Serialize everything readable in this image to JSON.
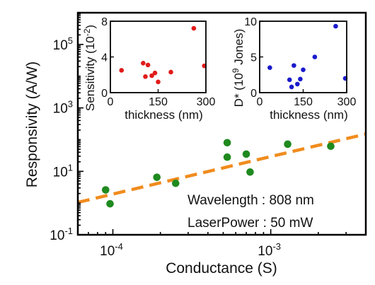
{
  "chart_data": [
    {
      "type": "scatter",
      "title": "",
      "xlabel": "Conductance (S)",
      "ylabel": "Responsivity (A/W)",
      "xscale": "log",
      "yscale": "log",
      "xlim": [
        6e-05,
        0.004
      ],
      "ylim": [
        0.1,
        1000000
      ],
      "xticks": [
        {
          "value": 0.0001,
          "base": "10",
          "exp": "-4"
        },
        {
          "value": 0.001,
          "base": "10",
          "exp": "-3"
        }
      ],
      "yticks": [
        {
          "value": 0.1,
          "base": "10",
          "exp": "-1"
        },
        {
          "value": 10,
          "base": "10",
          "exp": "1"
        },
        {
          "value": 1000,
          "base": "10",
          "exp": "3"
        },
        {
          "value": 100000,
          "base": "10",
          "exp": "5"
        }
      ],
      "series": [
        {
          "kind": "points",
          "color": "#1f8a1f",
          "points": [
            {
              "x": 9e-05,
              "y": 2.6
            },
            {
              "x": 9.6e-05,
              "y": 0.95
            },
            {
              "x": 0.00019,
              "y": 6.5
            },
            {
              "x": 0.00025,
              "y": 4.2
            },
            {
              "x": 0.00053,
              "y": 80
            },
            {
              "x": 0.00053,
              "y": 28
            },
            {
              "x": 0.0007,
              "y": 35
            },
            {
              "x": 0.00074,
              "y": 9.5
            },
            {
              "x": 0.00128,
              "y": 72
            },
            {
              "x": 0.0024,
              "y": 62
            }
          ]
        },
        {
          "kind": "fit-line",
          "color": "#f08c1e",
          "dash": true,
          "points": [
            {
              "x": 6e-05,
              "y": 1.05
            },
            {
              "x": 0.004,
              "y": 150
            }
          ]
        }
      ],
      "annotations": [
        "Wavelength : 808 nm",
        "LaserPower : 50 mW"
      ],
      "grid": false,
      "legend": "none"
    },
    {
      "type": "scatter",
      "xlabel": "thickness (nm)",
      "ylabel_parts": {
        "main": "Sensitivity (10",
        "exp": "-2",
        "end": ")"
      },
      "xlim": [
        0,
        300
      ],
      "ylim": [
        0,
        8
      ],
      "xticks": [
        {
          "value": 0,
          "label": "0"
        },
        {
          "value": 150,
          "label": "150"
        },
        {
          "value": 300,
          "label": "300"
        }
      ],
      "yticks": [
        {
          "value": 0,
          "label": "0"
        },
        {
          "value": 4,
          "label": "4"
        },
        {
          "value": 8,
          "label": "8"
        }
      ],
      "series": [
        {
          "color": "#e11b1b",
          "points": [
            {
              "x": 35,
              "y": 2.5
            },
            {
              "x": 103,
              "y": 3.3
            },
            {
              "x": 110,
              "y": 1.8
            },
            {
              "x": 118,
              "y": 3.1
            },
            {
              "x": 130,
              "y": 1.9
            },
            {
              "x": 140,
              "y": 2.2
            },
            {
              "x": 150,
              "y": 1.2
            },
            {
              "x": 190,
              "y": 2.3
            },
            {
              "x": 262,
              "y": 7.2
            },
            {
              "x": 295,
              "y": 3.0
            }
          ]
        }
      ]
    },
    {
      "type": "scatter",
      "xlabel": "thickness (nm)",
      "ylabel_parts": {
        "main": "D* (10",
        "exp": "9",
        "end": " Jones)"
      },
      "xlim": [
        0,
        300
      ],
      "ylim": [
        0,
        10
      ],
      "xticks": [
        {
          "value": 0,
          "label": "0"
        },
        {
          "value": 150,
          "label": "150"
        },
        {
          "value": 300,
          "label": "300"
        }
      ],
      "yticks": [
        {
          "value": 0,
          "label": "0"
        },
        {
          "value": 5,
          "label": "5"
        },
        {
          "value": 10,
          "label": "10"
        }
      ],
      "series": [
        {
          "color": "#1a1acc",
          "points": [
            {
              "x": 35,
              "y": 3.5
            },
            {
              "x": 103,
              "y": 1.8
            },
            {
              "x": 110,
              "y": 0.8
            },
            {
              "x": 118,
              "y": 3.8
            },
            {
              "x": 130,
              "y": 1.2
            },
            {
              "x": 140,
              "y": 1.9
            },
            {
              "x": 150,
              "y": 3.2
            },
            {
              "x": 190,
              "y": 5.0
            },
            {
              "x": 262,
              "y": 9.3
            },
            {
              "x": 295,
              "y": 2.0
            }
          ]
        }
      ]
    }
  ]
}
